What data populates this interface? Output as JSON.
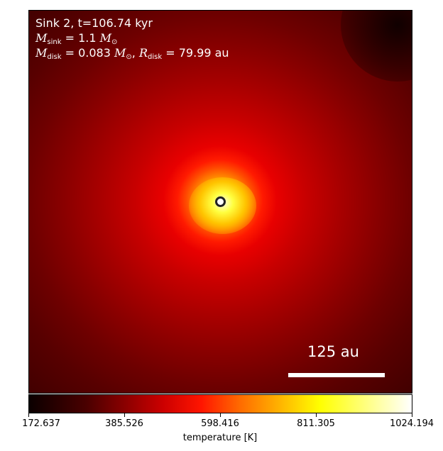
{
  "panel": {
    "line1": "Sink 2, t=106.74 kyr",
    "m_sink_sym": "M",
    "m_sink_sub": "sink",
    "m_sink_val": " = 1.1 ",
    "m_unit_sym": "M",
    "m_unit_sub": "⊙",
    "m_disk_sym": "M",
    "m_disk_sub": "disk",
    "m_disk_val": " = 0.083 ",
    "m_disk_unit_sym": "M",
    "m_disk_unit_sub": "⊙",
    "r_sep": ", ",
    "r_disk_sym": "R",
    "r_disk_sub": "disk",
    "r_disk_val": " = 79.99 au",
    "scale_label": "125 au"
  },
  "colorbar": {
    "ticks": [
      "172.637",
      "385.526",
      "598.416",
      "811.305",
      "1024.194"
    ],
    "label": "temperature [K]",
    "colormap": "hot"
  }
}
